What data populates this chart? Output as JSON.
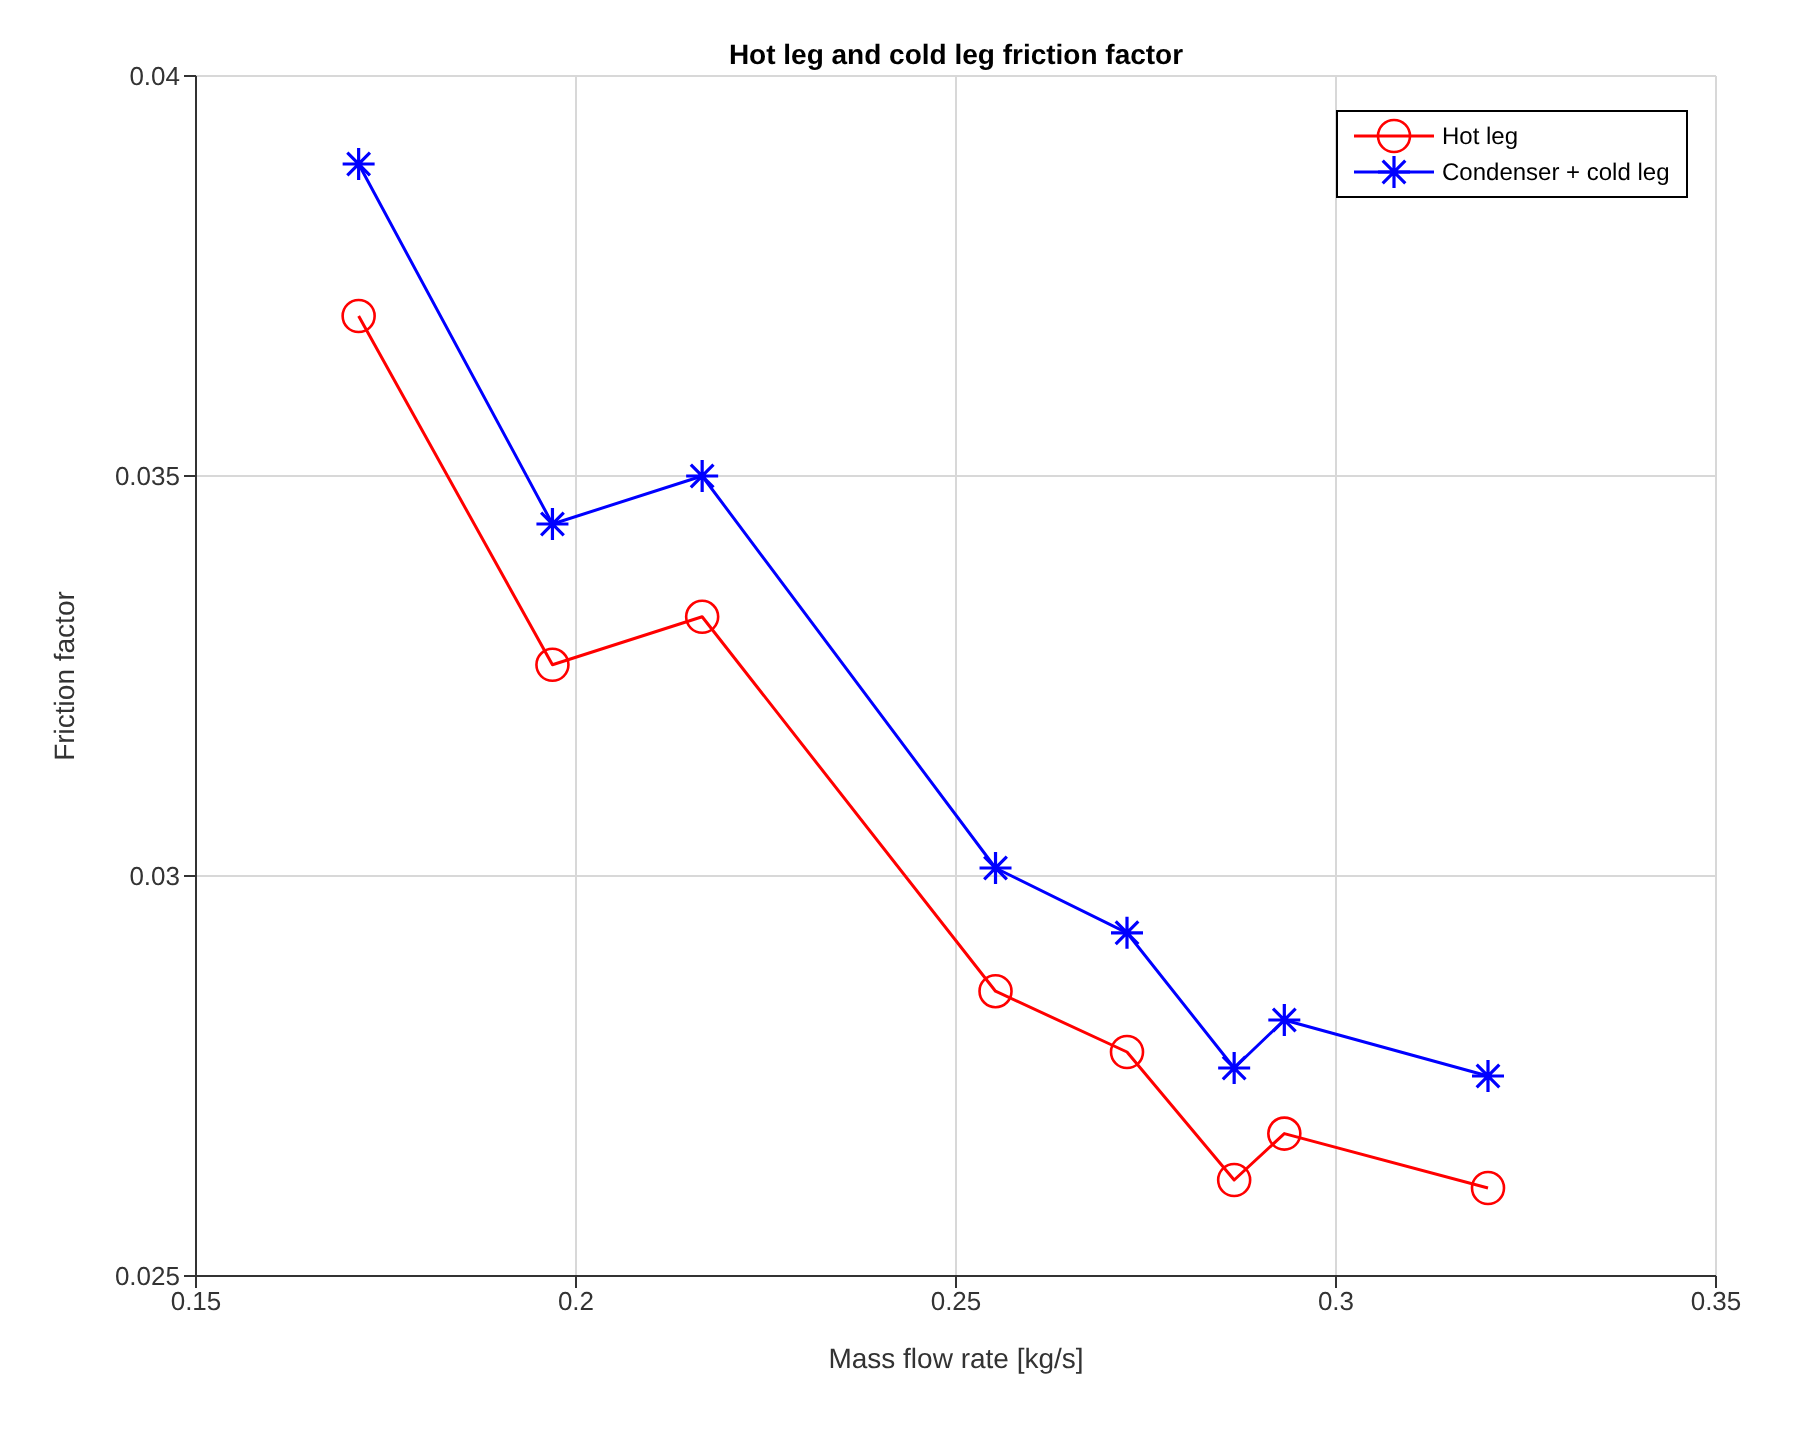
{
  "chart_data": {
    "type": "line",
    "title": "Hot leg and cold leg friction factor",
    "xlabel": "Mass flow rate [kg/s]",
    "ylabel": "Friction factor",
    "x": [
      0.1714,
      0.1969,
      0.2166,
      0.2552,
      0.2725,
      0.2866,
      0.2932,
      0.32
    ],
    "series": [
      {
        "name": "Hot leg",
        "color": "#ff0000",
        "marker": "circle",
        "values": [
          0.037,
          0.03264,
          0.03324,
          0.02856,
          0.0278,
          0.0262,
          0.02678,
          0.0261
        ]
      },
      {
        "name": "Condenser + cold leg",
        "color": "#0000ff",
        "marker": "cross",
        "values": [
          0.0389,
          0.0344,
          0.035,
          0.0301,
          0.02929,
          0.0276,
          0.0282,
          0.0275
        ]
      }
    ],
    "xlim": [
      0.15,
      0.35
    ],
    "xticks": [
      0.15,
      0.2,
      0.25,
      0.3,
      0.35
    ],
    "ylim": [
      0.025,
      0.04
    ],
    "yticks": [
      0.025,
      0.035,
      0.03,
      0.04
    ],
    "grid": true,
    "legend": "top right",
    "line_style": "solid"
  }
}
